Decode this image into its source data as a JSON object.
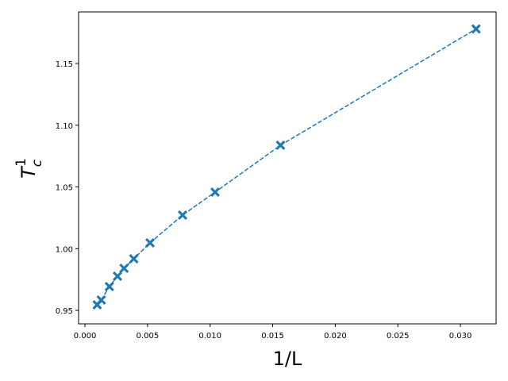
{
  "chart_data": {
    "type": "line",
    "xlabel": "1/L",
    "ylabel": {
      "base": "T",
      "sub": "c",
      "sup": "1"
    },
    "x": [
      0.000977,
      0.0013,
      0.00195,
      0.0026,
      0.003125,
      0.0039,
      0.0052,
      0.0078,
      0.0104,
      0.015625,
      0.03125
    ],
    "series": [
      {
        "color": "#1f77b4",
        "marker": "X",
        "linestyle": "dashed",
        "values": [
          0.9545,
          0.9584,
          0.9693,
          0.9777,
          0.9841,
          0.9918,
          1.0047,
          1.0272,
          1.0458,
          1.0838,
          1.178
        ]
      }
    ],
    "xlim": [
      -0.00051,
      0.03285
    ],
    "ylim": [
      0.9391,
      1.1918
    ],
    "xticks": [
      {
        "value": 0,
        "label": "0.000"
      },
      {
        "value": 0.005,
        "label": "0.005"
      },
      {
        "value": 0.01,
        "label": "0.010"
      },
      {
        "value": 0.015,
        "label": "0.015"
      },
      {
        "value": 0.02,
        "label": "0.020"
      },
      {
        "value": 0.025,
        "label": "0.025"
      },
      {
        "value": 0.03,
        "label": "0.030"
      }
    ],
    "yticks": [
      0.95,
      {
        "value": 1.0,
        "label": "1.00"
      },
      1.05,
      {
        "value": 1.1,
        "label": "1.10"
      },
      1.15
    ]
  }
}
